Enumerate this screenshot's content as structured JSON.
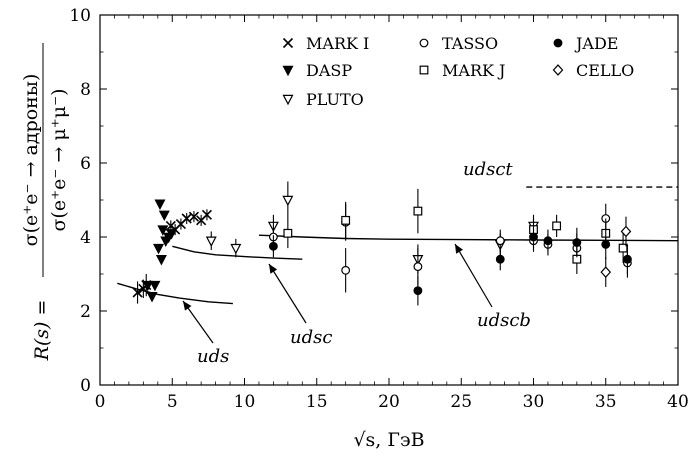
{
  "chart_data": {
    "type": "scatter",
    "xlabel": "√s, ГэВ",
    "ylabel": "R(s) = σ(e⁺e⁻ → адроны) / σ(e⁺e⁻ → μ⁺μ⁻)",
    "ylabel_lhs": "R(s) =",
    "ylabel_numerator": "σ(e⁺e⁻ → адроны)",
    "ylabel_denominator": "σ(e⁺e⁻ → μ⁺μ⁻)",
    "xlim": [
      0,
      40
    ],
    "ylim": [
      0,
      10
    ],
    "xticks": [
      0,
      5,
      10,
      15,
      20,
      25,
      30,
      35,
      40
    ],
    "yticks": [
      0,
      2,
      4,
      6,
      8,
      10
    ],
    "grid": false,
    "legend_position": "top-right",
    "series": [
      {
        "name": "MARK I",
        "marker": "x",
        "points": [
          {
            "x": 2.6,
            "y": 2.5,
            "err": 0.3
          },
          {
            "x": 3.0,
            "y": 2.6,
            "err": 0.25
          },
          {
            "x": 3.2,
            "y": 2.7,
            "err": 0.3
          },
          {
            "x": 4.9,
            "y": 4.3,
            "err": 0.15
          },
          {
            "x": 5.2,
            "y": 4.2,
            "err": 0.15
          },
          {
            "x": 5.6,
            "y": 4.35,
            "err": 0.15
          },
          {
            "x": 6.0,
            "y": 4.5,
            "err": 0.15
          },
          {
            "x": 6.5,
            "y": 4.55,
            "err": 0.15
          },
          {
            "x": 7.0,
            "y": 4.45,
            "err": 0.15
          },
          {
            "x": 7.4,
            "y": 4.6,
            "err": 0.15
          }
        ]
      },
      {
        "name": "DASP",
        "marker": "triangle-down-filled",
        "points": [
          {
            "x": 3.3,
            "y": 2.7
          },
          {
            "x": 3.6,
            "y": 2.4
          },
          {
            "x": 3.8,
            "y": 2.7
          },
          {
            "x": 4.05,
            "y": 3.7
          },
          {
            "x": 4.15,
            "y": 4.9
          },
          {
            "x": 4.25,
            "y": 3.4
          },
          {
            "x": 4.35,
            "y": 4.2
          },
          {
            "x": 4.45,
            "y": 4.6
          },
          {
            "x": 4.55,
            "y": 3.9
          },
          {
            "x": 4.75,
            "y": 4.0
          },
          {
            "x": 4.95,
            "y": 4.1
          }
        ]
      },
      {
        "name": "PLUTO",
        "marker": "triangle-down-open",
        "points": [
          {
            "x": 7.7,
            "y": 3.9,
            "err": 0.25
          },
          {
            "x": 9.4,
            "y": 3.7,
            "err": 0.25
          },
          {
            "x": 12.0,
            "y": 4.3,
            "err": 0.3
          },
          {
            "x": 13.0,
            "y": 5.0,
            "err": 0.5
          },
          {
            "x": 22.0,
            "y": 3.4,
            "err": 0.4
          },
          {
            "x": 27.7,
            "y": 3.8,
            "err": 0.3
          },
          {
            "x": 30.0,
            "y": 4.3,
            "err": 0.3
          }
        ]
      },
      {
        "name": "TASSO",
        "marker": "circle-open",
        "points": [
          {
            "x": 12.0,
            "y": 4.0,
            "err": 0.4
          },
          {
            "x": 17.0,
            "y": 3.1,
            "err": 0.6
          },
          {
            "x": 17.0,
            "y": 4.4,
            "err": 0.5
          },
          {
            "x": 22.0,
            "y": 3.2,
            "err": 0.5
          },
          {
            "x": 27.7,
            "y": 3.9,
            "err": 0.3
          },
          {
            "x": 30.0,
            "y": 3.9,
            "err": 0.3
          },
          {
            "x": 31.0,
            "y": 3.8,
            "err": 0.3
          },
          {
            "x": 33.0,
            "y": 3.7,
            "err": 0.4
          },
          {
            "x": 35.0,
            "y": 4.5,
            "err": 0.4
          },
          {
            "x": 36.5,
            "y": 3.3,
            "err": 0.4
          }
        ]
      },
      {
        "name": "MARK J",
        "marker": "square-open",
        "points": [
          {
            "x": 13.0,
            "y": 4.1,
            "err": 0.4
          },
          {
            "x": 17.0,
            "y": 4.45,
            "err": 0.5
          },
          {
            "x": 22.0,
            "y": 4.7,
            "err": 0.6
          },
          {
            "x": 30.0,
            "y": 4.2,
            "err": 0.3
          },
          {
            "x": 31.6,
            "y": 4.3,
            "err": 0.3
          },
          {
            "x": 33.0,
            "y": 3.4,
            "err": 0.4
          },
          {
            "x": 35.0,
            "y": 4.1,
            "err": 0.4
          },
          {
            "x": 36.2,
            "y": 3.7,
            "err": 0.4
          }
        ]
      },
      {
        "name": "JADE",
        "marker": "circle-filled",
        "points": [
          {
            "x": 12.0,
            "y": 3.75,
            "err": 0.3
          },
          {
            "x": 22.0,
            "y": 2.55,
            "err": 0.4
          },
          {
            "x": 27.7,
            "y": 3.4,
            "err": 0.3
          },
          {
            "x": 30.0,
            "y": 4.0,
            "err": 0.3
          },
          {
            "x": 31.0,
            "y": 3.9,
            "err": 0.3
          },
          {
            "x": 33.0,
            "y": 3.85,
            "err": 0.4
          },
          {
            "x": 35.0,
            "y": 3.8,
            "err": 0.4
          },
          {
            "x": 36.5,
            "y": 3.4,
            "err": 0.4
          }
        ]
      },
      {
        "name": "CELLO",
        "marker": "diamond-open",
        "points": [
          {
            "x": 35.0,
            "y": 3.05,
            "err": 0.4
          },
          {
            "x": 36.4,
            "y": 4.15,
            "err": 0.4
          }
        ]
      }
    ],
    "curves": [
      {
        "label": "uds",
        "points": [
          [
            1.2,
            2.75
          ],
          [
            2.5,
            2.6
          ],
          [
            4,
            2.45
          ],
          [
            5.5,
            2.35
          ],
          [
            7.5,
            2.25
          ],
          [
            9.2,
            2.2
          ]
        ]
      },
      {
        "label": "udsc",
        "points": [
          [
            5,
            3.75
          ],
          [
            6.5,
            3.6
          ],
          [
            8,
            3.52
          ],
          [
            10,
            3.47
          ],
          [
            12,
            3.43
          ],
          [
            14,
            3.4
          ]
        ]
      },
      {
        "label": "udscb",
        "points": [
          [
            11,
            4.05
          ],
          [
            14,
            4.0
          ],
          [
            17,
            3.96
          ],
          [
            20,
            3.94
          ],
          [
            25,
            3.93
          ],
          [
            30,
            3.92
          ],
          [
            35,
            3.91
          ],
          [
            40,
            3.9
          ]
        ]
      },
      {
        "label": "udsct",
        "style": "dashed",
        "points": [
          [
            29.5,
            5.35
          ],
          [
            40,
            5.35
          ]
        ]
      }
    ],
    "annotations": [
      "uds",
      "udsc",
      "udscb",
      "udsct"
    ]
  }
}
